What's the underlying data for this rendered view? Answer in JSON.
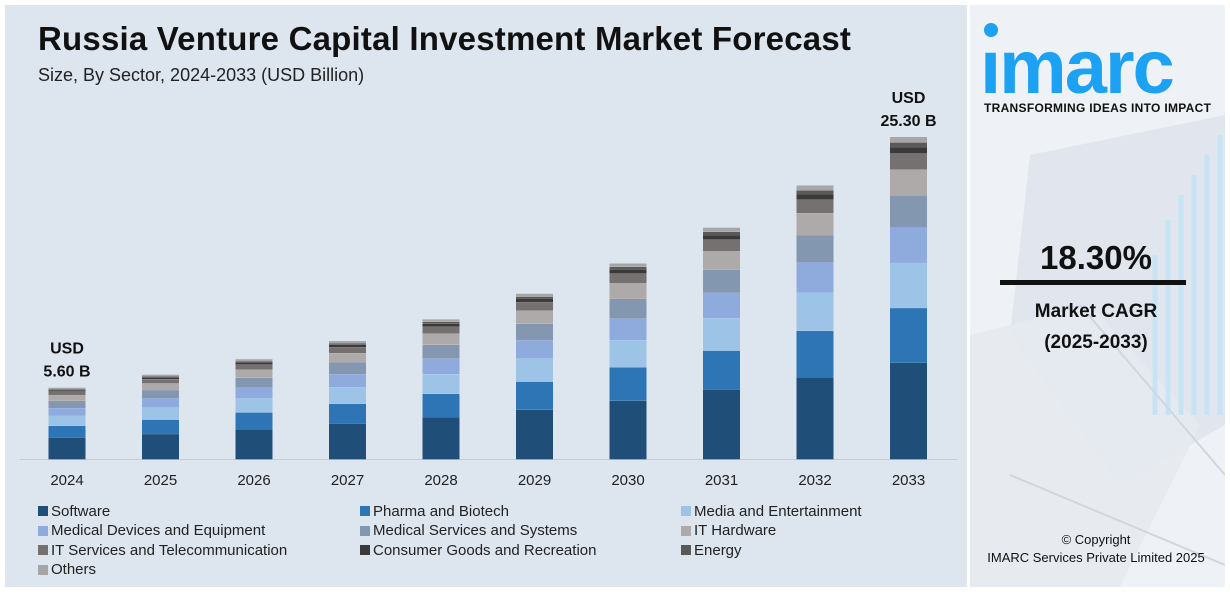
{
  "header": {
    "title": "Russia Venture Capital Investment Market Forecast",
    "subtitle": "Size, By Sector, 2024-2033 (USD Billion)"
  },
  "chart_data": {
    "type": "bar",
    "stacked": true,
    "title": "Russia Venture Capital Investment Market Forecast",
    "subtitle": "Size, By Sector, 2024-2033 (USD Billion)",
    "categories": [
      "2024",
      "2025",
      "2026",
      "2027",
      "2028",
      "2029",
      "2030",
      "2031",
      "2032",
      "2033"
    ],
    "totals": [
      5.6,
      6.62,
      7.84,
      9.27,
      10.97,
      12.98,
      15.36,
      18.17,
      21.49,
      25.3
    ],
    "annotations": [
      {
        "category": "2024",
        "line1": "USD",
        "line2": "5.60 B"
      },
      {
        "category": "2033",
        "line1": "USD",
        "line2": "25.30 B"
      }
    ],
    "series": [
      {
        "name": "Software",
        "color": "#1f4e79",
        "values": [
          1.68,
          1.99,
          2.35,
          2.78,
          3.29,
          3.89,
          4.61,
          5.45,
          6.45,
          7.59
        ]
      },
      {
        "name": "Pharma and Biotech",
        "color": "#2e75b6",
        "values": [
          0.95,
          1.13,
          1.33,
          1.58,
          1.86,
          2.21,
          2.61,
          3.09,
          3.65,
          4.3
        ]
      },
      {
        "name": "Media and Entertainment",
        "color": "#9dc3e6",
        "values": [
          0.78,
          0.93,
          1.1,
          1.3,
          1.54,
          1.82,
          2.15,
          2.54,
          3.01,
          3.54
        ]
      },
      {
        "name": "Medical Devices and Equipment",
        "color": "#8faadc",
        "values": [
          0.62,
          0.73,
          0.86,
          1.02,
          1.21,
          1.43,
          1.69,
          2.0,
          2.36,
          2.78
        ]
      },
      {
        "name": "Medical Services and Systems",
        "color": "#8497b0",
        "values": [
          0.56,
          0.66,
          0.78,
          0.93,
          1.1,
          1.3,
          1.54,
          1.82,
          2.15,
          2.53
        ]
      },
      {
        "name": "IT Hardware",
        "color": "#aeaaaa",
        "values": [
          0.45,
          0.53,
          0.63,
          0.74,
          0.88,
          1.04,
          1.23,
          1.45,
          1.72,
          2.02
        ]
      },
      {
        "name": "IT Services and Telecommunication",
        "color": "#767171",
        "values": [
          0.28,
          0.33,
          0.39,
          0.46,
          0.55,
          0.65,
          0.77,
          0.91,
          1.07,
          1.27
        ]
      },
      {
        "name": "Consumer Goods and Recreation",
        "color": "#3a3a3a",
        "values": [
          0.11,
          0.13,
          0.16,
          0.19,
          0.22,
          0.26,
          0.31,
          0.36,
          0.43,
          0.51
        ]
      },
      {
        "name": "Energy",
        "color": "#595959",
        "values": [
          0.08,
          0.09,
          0.11,
          0.13,
          0.15,
          0.18,
          0.21,
          0.25,
          0.3,
          0.35
        ]
      },
      {
        "name": "Others",
        "color": "#a6a6a6",
        "values": [
          0.09,
          0.1,
          0.13,
          0.14,
          0.17,
          0.2,
          0.24,
          0.3,
          0.35,
          0.41
        ]
      }
    ],
    "ylim": [
      0,
      25.3
    ],
    "grid": false,
    "legend_position": "bottom"
  },
  "sidebar": {
    "brand_name": "imarc",
    "tagline": "TRANSFORMING IDEAS INTO IMPACT",
    "cagr_value": "18.30%",
    "cagr_label": "Market CAGR",
    "cagr_period": "(2025-2033)",
    "copyright_line1": "© Copyright",
    "copyright_line2": "IMARC Services Private Limited 2025",
    "brand_color": "#1da1f2"
  }
}
